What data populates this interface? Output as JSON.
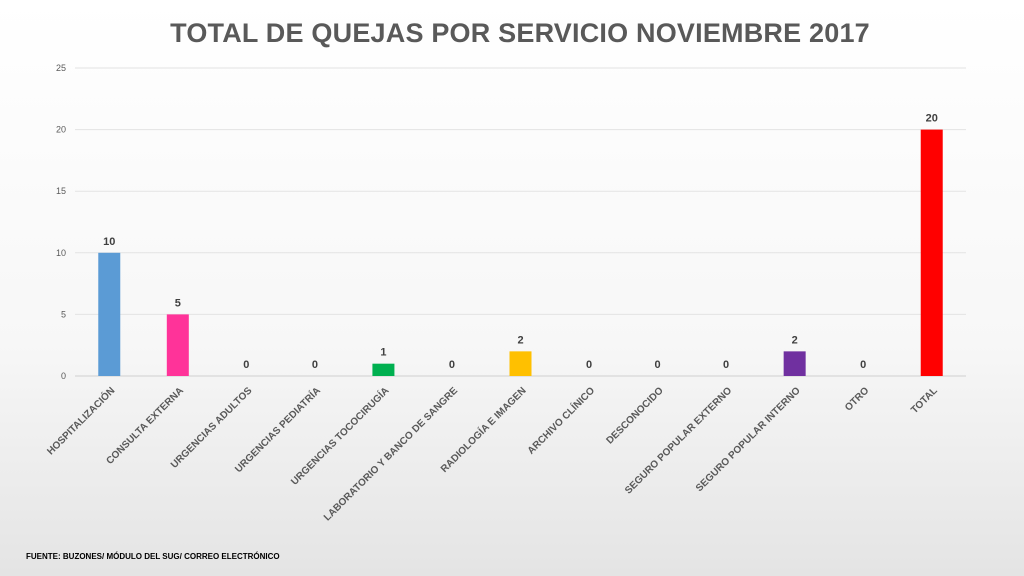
{
  "chart_data": {
    "type": "bar",
    "title": "TOTAL DE QUEJAS POR SERVICIO NOVIEMBRE 2017",
    "xlabel": "",
    "ylabel": "",
    "ylim": [
      0,
      25
    ],
    "yticks": [
      0,
      5,
      10,
      15,
      20,
      25
    ],
    "grid": true,
    "categories": [
      "HOSPITALIZACIÓN",
      "CONSULTA EXTERNA",
      "URGENCIAS ADULTOS",
      "URGENCIAS PEDIATRÍA",
      "URGENCIAS TOCOCIRUGÍA",
      "LABORATORIO Y BANCO DE SANGRE",
      "RADIOLOGÍA E IMAGEN",
      "ARCHIVO CLÍNICO",
      "DESCONOCIDO",
      "SEGURO POPULAR EXTERNO",
      "SEGURO POPULAR INTERNO",
      "OTRO",
      "TOTAL"
    ],
    "values": [
      10,
      5,
      0,
      0,
      1,
      0,
      2,
      0,
      0,
      0,
      2,
      0,
      20
    ],
    "colors": [
      "#5B9BD5",
      "#FF3399",
      "#A5A5A5",
      "#A5A5A5",
      "#00B050",
      "#A5A5A5",
      "#FFC000",
      "#A5A5A5",
      "#A5A5A5",
      "#A5A5A5",
      "#7030A0",
      "#A5A5A5",
      "#FF0000"
    ]
  },
  "footer": {
    "source": "FUENTE: BUZONES/ MÓDULO DEL SUG/ CORREO ELECTRÓNICO"
  }
}
